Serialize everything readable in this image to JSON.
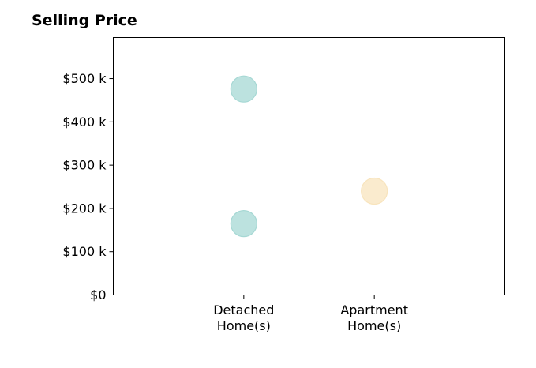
{
  "chart_data": {
    "type": "scatter",
    "title": "Selling Price",
    "xlabel": "",
    "ylabel": "",
    "categories": [
      "Detached\nHome(s)",
      "Apartment\nHome(s)"
    ],
    "xlim": [
      -1,
      2
    ],
    "ylim": [
      0,
      595
    ],
    "y_ticks": [
      {
        "value": 0,
        "label": "$0"
      },
      {
        "value": 100,
        "label": "$100 k"
      },
      {
        "value": 200,
        "label": "$200 k"
      },
      {
        "value": 300,
        "label": "$300 k"
      },
      {
        "value": 400,
        "label": "$400 k"
      },
      {
        "value": 500,
        "label": "$500 k"
      }
    ],
    "y_unit": "thousand USD",
    "grid": false,
    "series": [
      {
        "category": "Detached\nHome(s)",
        "color": "#a6d8d4",
        "values": [
          476,
          165
        ]
      },
      {
        "category": "Apartment\nHome(s)",
        "color": "#f8e4bd",
        "values": [
          240
        ]
      }
    ]
  }
}
